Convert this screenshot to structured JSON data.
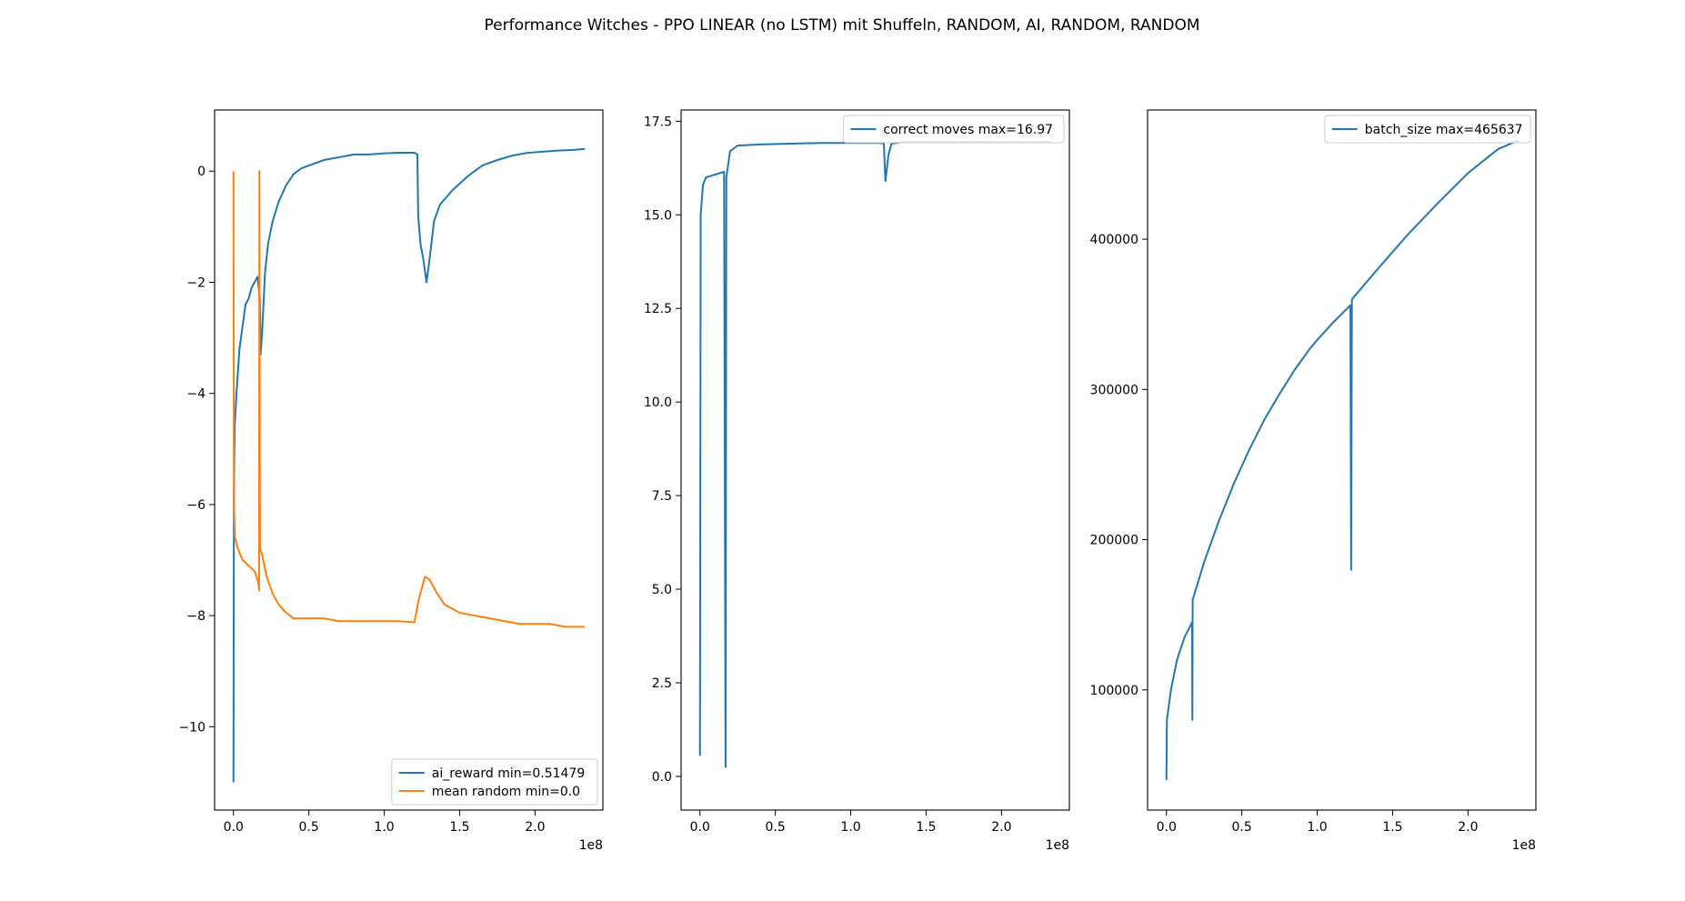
{
  "title": "Performance Witches - PPO LINEAR (no LSTM) mit Shuffeln, RANDOM, AI, RANDOM, RANDOM",
  "chart_data": [
    {
      "type": "line",
      "x_exponent_label": "1e8",
      "xlim": [
        -0.125,
        2.45
      ],
      "ylim": [
        -11.5,
        1.1
      ],
      "x_ticks": [
        0.0,
        0.5,
        1.0,
        1.5,
        2.0
      ],
      "x_tick_labels": [
        "0.0",
        "0.5",
        "1.0",
        "1.5",
        "2.0"
      ],
      "y_ticks": [
        -10,
        -8,
        -6,
        -4,
        -2,
        0
      ],
      "y_tick_labels": [
        "−10",
        "−8",
        "−6",
        "−4",
        "−2",
        "0"
      ],
      "legend_position": "lower right",
      "series": [
        {
          "name": "ai_reward min=0.51479",
          "color": "#1f77b4",
          "points": [
            [
              0.0,
              -11.0
            ],
            [
              0.003,
              -5.8
            ],
            [
              0.008,
              -4.6
            ],
            [
              0.02,
              -4.0
            ],
            [
              0.04,
              -3.2
            ],
            [
              0.06,
              -2.8
            ],
            [
              0.08,
              -2.4
            ],
            [
              0.1,
              -2.3
            ],
            [
              0.12,
              -2.1
            ],
            [
              0.14,
              -2.0
            ],
            [
              0.16,
              -1.9
            ],
            [
              0.175,
              -2.3
            ],
            [
              0.18,
              -3.3
            ],
            [
              0.19,
              -2.9
            ],
            [
              0.21,
              -1.8
            ],
            [
              0.23,
              -1.3
            ],
            [
              0.26,
              -0.9
            ],
            [
              0.3,
              -0.55
            ],
            [
              0.35,
              -0.25
            ],
            [
              0.4,
              -0.05
            ],
            [
              0.45,
              0.05
            ],
            [
              0.5,
              0.1
            ],
            [
              0.6,
              0.2
            ],
            [
              0.7,
              0.25
            ],
            [
              0.8,
              0.3
            ],
            [
              0.9,
              0.3
            ],
            [
              1.0,
              0.32
            ],
            [
              1.1,
              0.33
            ],
            [
              1.2,
              0.33
            ],
            [
              1.22,
              0.3
            ],
            [
              1.225,
              -0.8
            ],
            [
              1.24,
              -1.3
            ],
            [
              1.26,
              -1.6
            ],
            [
              1.28,
              -2.0
            ],
            [
              1.3,
              -1.6
            ],
            [
              1.33,
              -0.9
            ],
            [
              1.37,
              -0.6
            ],
            [
              1.45,
              -0.35
            ],
            [
              1.55,
              -0.1
            ],
            [
              1.65,
              0.1
            ],
            [
              1.75,
              0.2
            ],
            [
              1.85,
              0.28
            ],
            [
              1.95,
              0.33
            ],
            [
              2.05,
              0.35
            ],
            [
              2.15,
              0.37
            ],
            [
              2.25,
              0.38
            ],
            [
              2.33,
              0.4
            ]
          ]
        },
        {
          "name": "mean random min=0.0",
          "color": "#ff7f0e",
          "points": [
            [
              0.0,
              0.0
            ],
            [
              0.003,
              -6.0
            ],
            [
              0.01,
              -6.6
            ],
            [
              0.03,
              -6.8
            ],
            [
              0.06,
              -7.0
            ],
            [
              0.1,
              -7.1
            ],
            [
              0.14,
              -7.2
            ],
            [
              0.165,
              -7.4
            ],
            [
              0.17,
              -7.55
            ],
            [
              0.172,
              0.0
            ],
            [
              0.176,
              -6.8
            ],
            [
              0.19,
              -6.9
            ],
            [
              0.22,
              -7.3
            ],
            [
              0.26,
              -7.6
            ],
            [
              0.3,
              -7.8
            ],
            [
              0.35,
              -7.95
            ],
            [
              0.4,
              -8.05
            ],
            [
              0.5,
              -8.05
            ],
            [
              0.6,
              -8.05
            ],
            [
              0.7,
              -8.1
            ],
            [
              0.8,
              -8.1
            ],
            [
              0.9,
              -8.1
            ],
            [
              1.0,
              -8.1
            ],
            [
              1.1,
              -8.1
            ],
            [
              1.2,
              -8.12
            ],
            [
              1.23,
              -7.7
            ],
            [
              1.27,
              -7.3
            ],
            [
              1.3,
              -7.35
            ],
            [
              1.35,
              -7.6
            ],
            [
              1.4,
              -7.8
            ],
            [
              1.5,
              -7.95
            ],
            [
              1.6,
              -8.0
            ],
            [
              1.7,
              -8.05
            ],
            [
              1.8,
              -8.1
            ],
            [
              1.9,
              -8.15
            ],
            [
              2.0,
              -8.15
            ],
            [
              2.1,
              -8.15
            ],
            [
              2.2,
              -8.2
            ],
            [
              2.33,
              -8.2
            ]
          ]
        }
      ]
    },
    {
      "type": "line",
      "x_exponent_label": "1e8",
      "xlim": [
        -0.125,
        2.45
      ],
      "ylim": [
        -0.9,
        17.8
      ],
      "x_ticks": [
        0.0,
        0.5,
        1.0,
        1.5,
        2.0
      ],
      "x_tick_labels": [
        "0.0",
        "0.5",
        "1.0",
        "1.5",
        "2.0"
      ],
      "y_ticks": [
        0.0,
        2.5,
        5.0,
        7.5,
        10.0,
        12.5,
        15.0,
        17.5
      ],
      "y_tick_labels": [
        "0.0",
        "2.5",
        "5.0",
        "7.5",
        "10.0",
        "12.5",
        "15.0",
        "17.5"
      ],
      "legend_position": "upper right",
      "series": [
        {
          "name": "correct moves max=16.97",
          "color": "#1f77b4",
          "points": [
            [
              0.0,
              0.55
            ],
            [
              0.005,
              15.0
            ],
            [
              0.02,
              15.8
            ],
            [
              0.04,
              16.0
            ],
            [
              0.08,
              16.05
            ],
            [
              0.12,
              16.1
            ],
            [
              0.16,
              16.15
            ],
            [
              0.17,
              0.25
            ],
            [
              0.175,
              16.0
            ],
            [
              0.2,
              16.7
            ],
            [
              0.25,
              16.85
            ],
            [
              0.4,
              16.88
            ],
            [
              0.6,
              16.9
            ],
            [
              0.8,
              16.92
            ],
            [
              1.0,
              16.92
            ],
            [
              1.2,
              16.92
            ],
            [
              1.22,
              16.9
            ],
            [
              1.23,
              15.9
            ],
            [
              1.25,
              16.6
            ],
            [
              1.27,
              16.9
            ],
            [
              1.35,
              16.95
            ],
            [
              1.5,
              16.95
            ],
            [
              1.7,
              16.95
            ],
            [
              1.9,
              16.95
            ],
            [
              2.1,
              16.94
            ],
            [
              2.33,
              16.95
            ]
          ]
        }
      ]
    },
    {
      "type": "line",
      "x_exponent_label": "1e8",
      "xlim": [
        -0.125,
        2.45
      ],
      "ylim": [
        20000,
        486000
      ],
      "x_ticks": [
        0.0,
        0.5,
        1.0,
        1.5,
        2.0
      ],
      "x_tick_labels": [
        "0.0",
        "0.5",
        "1.0",
        "1.5",
        "2.0"
      ],
      "y_ticks": [
        100000,
        200000,
        300000,
        400000
      ],
      "y_tick_labels": [
        "100000",
        "200000",
        "300000",
        "400000"
      ],
      "legend_position": "upper right",
      "series": [
        {
          "name": "batch_size max=465637",
          "color": "#1f77b4",
          "points": [
            [
              0.0,
              40000
            ],
            [
              0.003,
              80000
            ],
            [
              0.03,
              100000
            ],
            [
              0.07,
              120000
            ],
            [
              0.12,
              135000
            ],
            [
              0.17,
              145000
            ],
            [
              0.172,
              80000
            ],
            [
              0.174,
              160000
            ],
            [
              0.25,
              185000
            ],
            [
              0.35,
              213000
            ],
            [
              0.45,
              238000
            ],
            [
              0.55,
              260000
            ],
            [
              0.65,
              280000
            ],
            [
              0.75,
              297000
            ],
            [
              0.85,
              313000
            ],
            [
              0.95,
              327000
            ],
            [
              1.0,
              333000
            ],
            [
              1.1,
              344000
            ],
            [
              1.22,
              356000
            ],
            [
              1.225,
              180000
            ],
            [
              1.23,
              360000
            ],
            [
              1.4,
              380000
            ],
            [
              1.6,
              403000
            ],
            [
              1.8,
              424000
            ],
            [
              2.0,
              444000
            ],
            [
              2.2,
              460000
            ],
            [
              2.33,
              465637
            ]
          ]
        }
      ]
    }
  ]
}
